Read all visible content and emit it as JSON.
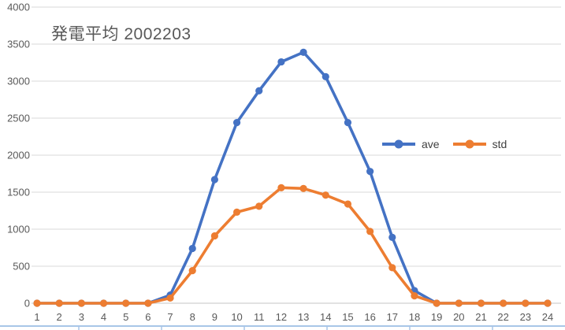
{
  "title": "発電平均 2002203",
  "chart_data": {
    "type": "line",
    "title": "発電平均 2002203",
    "x": [
      1,
      2,
      3,
      4,
      5,
      6,
      7,
      8,
      9,
      10,
      11,
      12,
      13,
      14,
      15,
      16,
      17,
      18,
      19,
      20,
      21,
      22,
      23,
      24
    ],
    "series": [
      {
        "name": "ave",
        "color": "#4472C4",
        "values": [
          0,
          0,
          0,
          0,
          0,
          0,
          110,
          740,
          1670,
          2440,
          2870,
          3260,
          3390,
          3060,
          2440,
          1780,
          890,
          170,
          0,
          0,
          0,
          0,
          0,
          0
        ]
      },
      {
        "name": "std",
        "color": "#ED7D31",
        "values": [
          0,
          0,
          0,
          0,
          0,
          0,
          70,
          440,
          910,
          1230,
          1310,
          1560,
          1550,
          1460,
          1340,
          970,
          480,
          100,
          0,
          0,
          0,
          0,
          0,
          0
        ]
      }
    ],
    "xlabel": "",
    "ylabel": "",
    "ylim": [
      0,
      4000
    ],
    "ytick_step": 500,
    "yticks": [
      0,
      500,
      1000,
      1500,
      2000,
      2500,
      3000,
      3500,
      4000
    ],
    "grid": true,
    "marker": "circle",
    "legend_position": "inside-right-middle"
  },
  "legend": {
    "items": [
      {
        "label": "ave",
        "color": "#4472C4"
      },
      {
        "label": "std",
        "color": "#ED7D31"
      }
    ]
  },
  "colors": {
    "title_text": "#595959",
    "axis_text": "#595959",
    "legend_text": "#404040",
    "gridline": "#d9d9d9",
    "axis_line": "#c6c6c6",
    "background": "#ffffff",
    "worksheet_border": "#a8c6e8"
  }
}
